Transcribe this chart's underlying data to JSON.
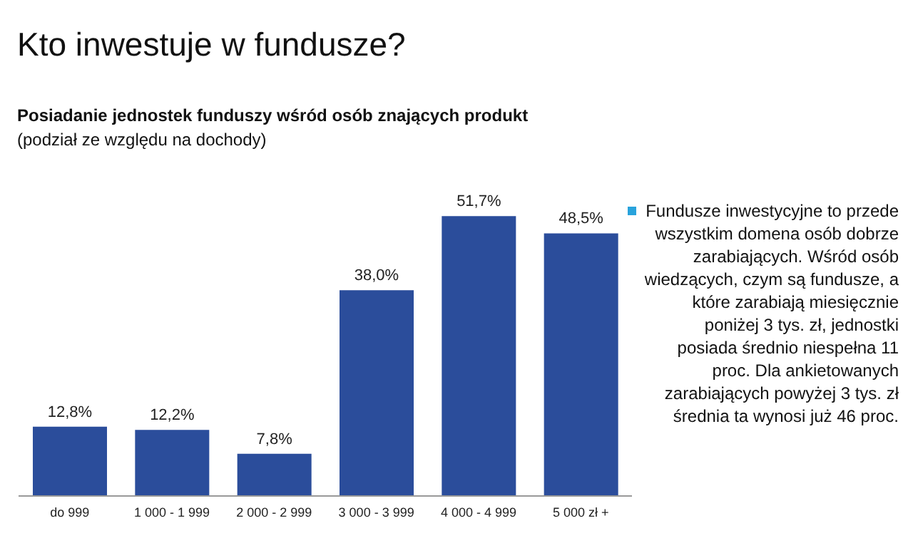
{
  "chart_data": {
    "type": "bar",
    "title": "Kto inwestuje w fundusze?",
    "subtitle": "Posiadanie jednostek funduszy wśród osób znających produkt",
    "annotations": [
      "(podział ze względu na dochody)",
      "Fundusze inwestycyjne to przede wszystkim domena osób dobrze zarabiających. Wśród osób wiedzących, czym są fundusze, a które zarabiają miesięcznie poniżej 3 tys. zł, jednostki posiada średnio niespełna 11 proc. Dla ankietowanych zarabiających powyżej 3 tys. zł średnia ta wynosi już 46 proc."
    ],
    "categories": [
      "do 999",
      "1 000 - 1 999",
      "2 000 - 2 999",
      "3 000 - 3 999",
      "4 000 - 4 999",
      "5 000 zł +"
    ],
    "values": [
      12.8,
      12.2,
      7.8,
      38.0,
      51.7,
      48.5
    ],
    "value_labels": [
      "12,8%",
      "12,2%",
      "7,8%",
      "38,0%",
      "51,7%",
      "48,5%"
    ],
    "color": "#2b4d9b",
    "grid": false,
    "legend": false
  }
}
